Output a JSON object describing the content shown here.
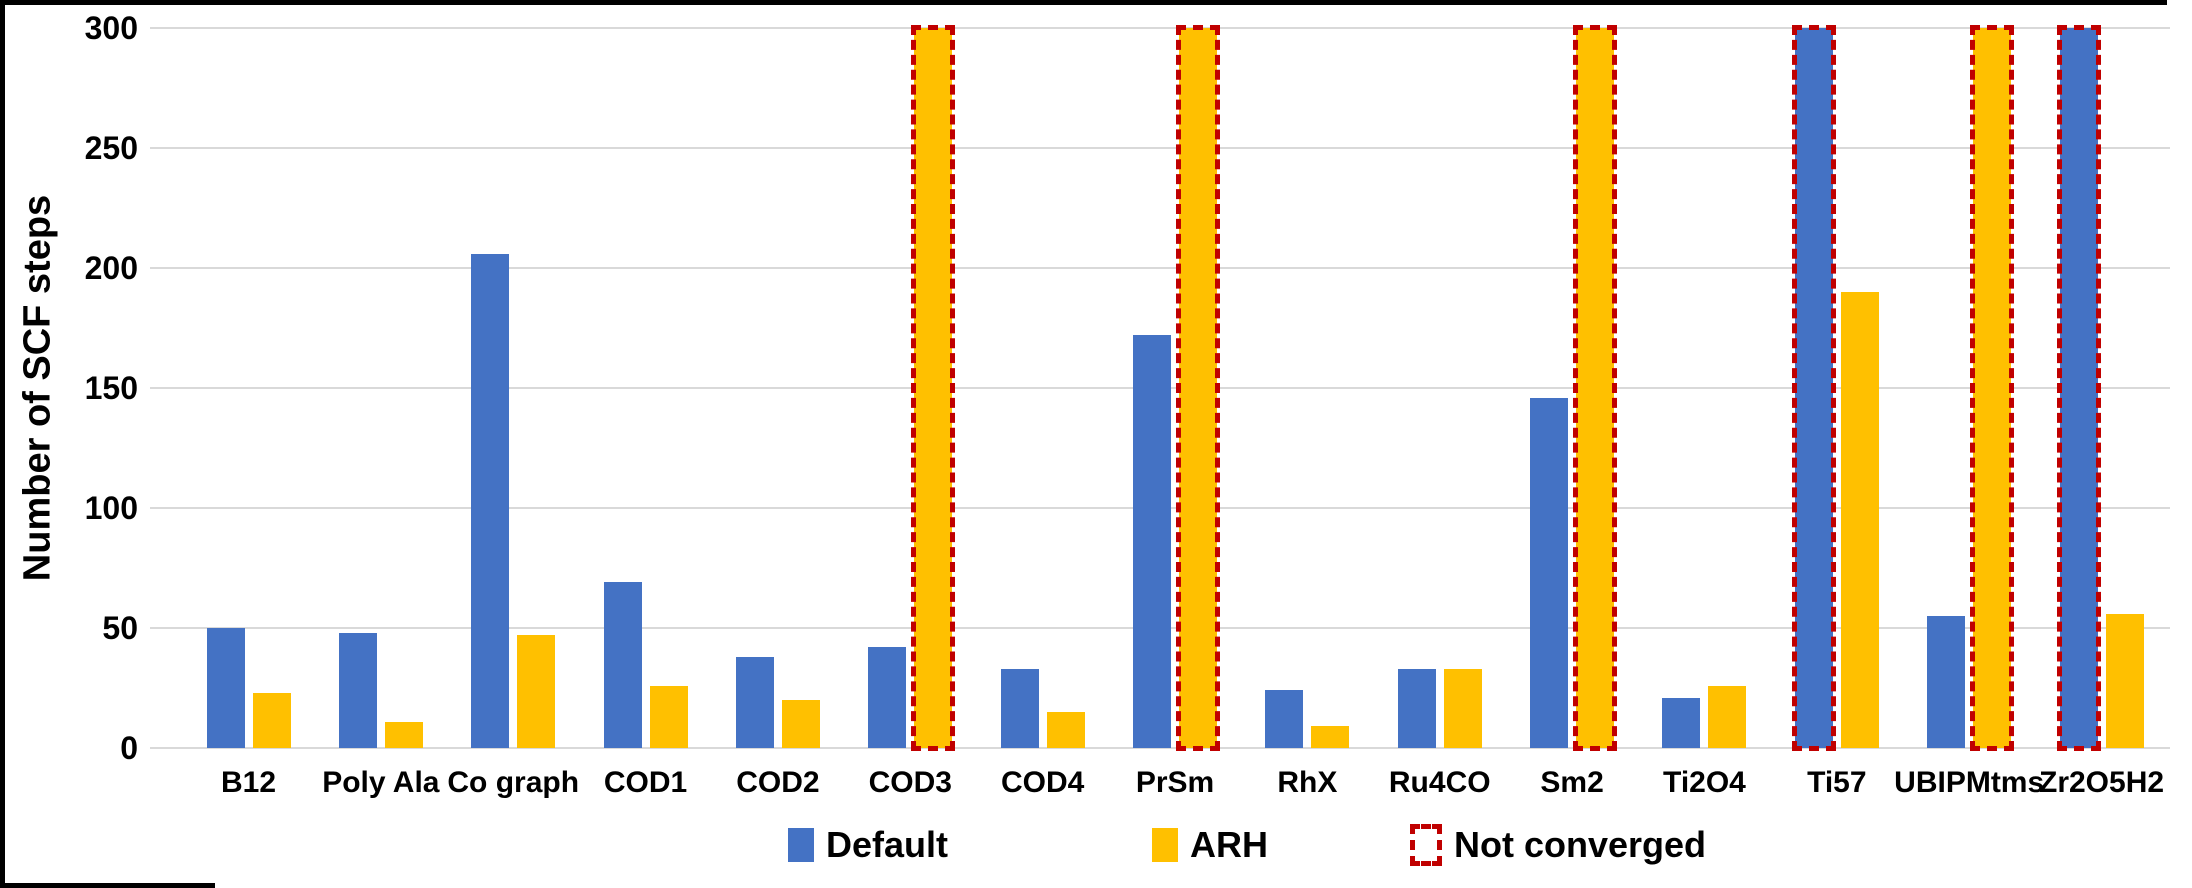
{
  "chart_data": {
    "type": "bar",
    "title": "",
    "xlabel": "",
    "ylabel": "Number of SCF steps",
    "ylim": [
      0,
      300
    ],
    "yticks": [
      0,
      50,
      100,
      150,
      200,
      250,
      300
    ],
    "grid": true,
    "legend_position": "bottom",
    "categories": [
      "B12",
      "Poly Ala",
      "Co graph",
      "COD1",
      "COD2",
      "COD3",
      "COD4",
      "PrSm",
      "RhX",
      "Ru4CO",
      "Sm2",
      "Ti2O4",
      "Ti57",
      "UBIPMtms",
      "Zr2O5H2"
    ],
    "series": [
      {
        "name": "Default",
        "color": "#4472C4",
        "values": [
          50,
          48,
          206,
          69,
          38,
          42,
          33,
          172,
          24,
          33,
          146,
          21,
          300,
          55,
          300
        ],
        "not_converged": [
          false,
          false,
          false,
          false,
          false,
          false,
          false,
          false,
          false,
          false,
          false,
          false,
          true,
          false,
          true
        ]
      },
      {
        "name": "ARH",
        "color": "#FFC000",
        "values": [
          23,
          11,
          47,
          26,
          20,
          300,
          15,
          300,
          9,
          33,
          300,
          26,
          190,
          300,
          56
        ],
        "not_converged": [
          false,
          false,
          false,
          false,
          false,
          true,
          false,
          true,
          false,
          false,
          true,
          false,
          false,
          true,
          false
        ]
      }
    ],
    "not_converged_cap_value": 300
  },
  "legend": {
    "items": [
      {
        "label": "Default",
        "swatch": "solid-square",
        "color": "#4472C4"
      },
      {
        "label": "ARH",
        "swatch": "solid-square",
        "color": "#FFC000"
      },
      {
        "label": "Not converged",
        "swatch": "dashed-outline-square",
        "color": "#C00000"
      }
    ]
  },
  "colors": {
    "default_series": "#4472C4",
    "arh_series": "#FFC000",
    "not_converged": "#C00000",
    "gridline": "#D9D9D9",
    "text": "#000000",
    "background": "#FFFFFF",
    "frame": "#000000"
  }
}
